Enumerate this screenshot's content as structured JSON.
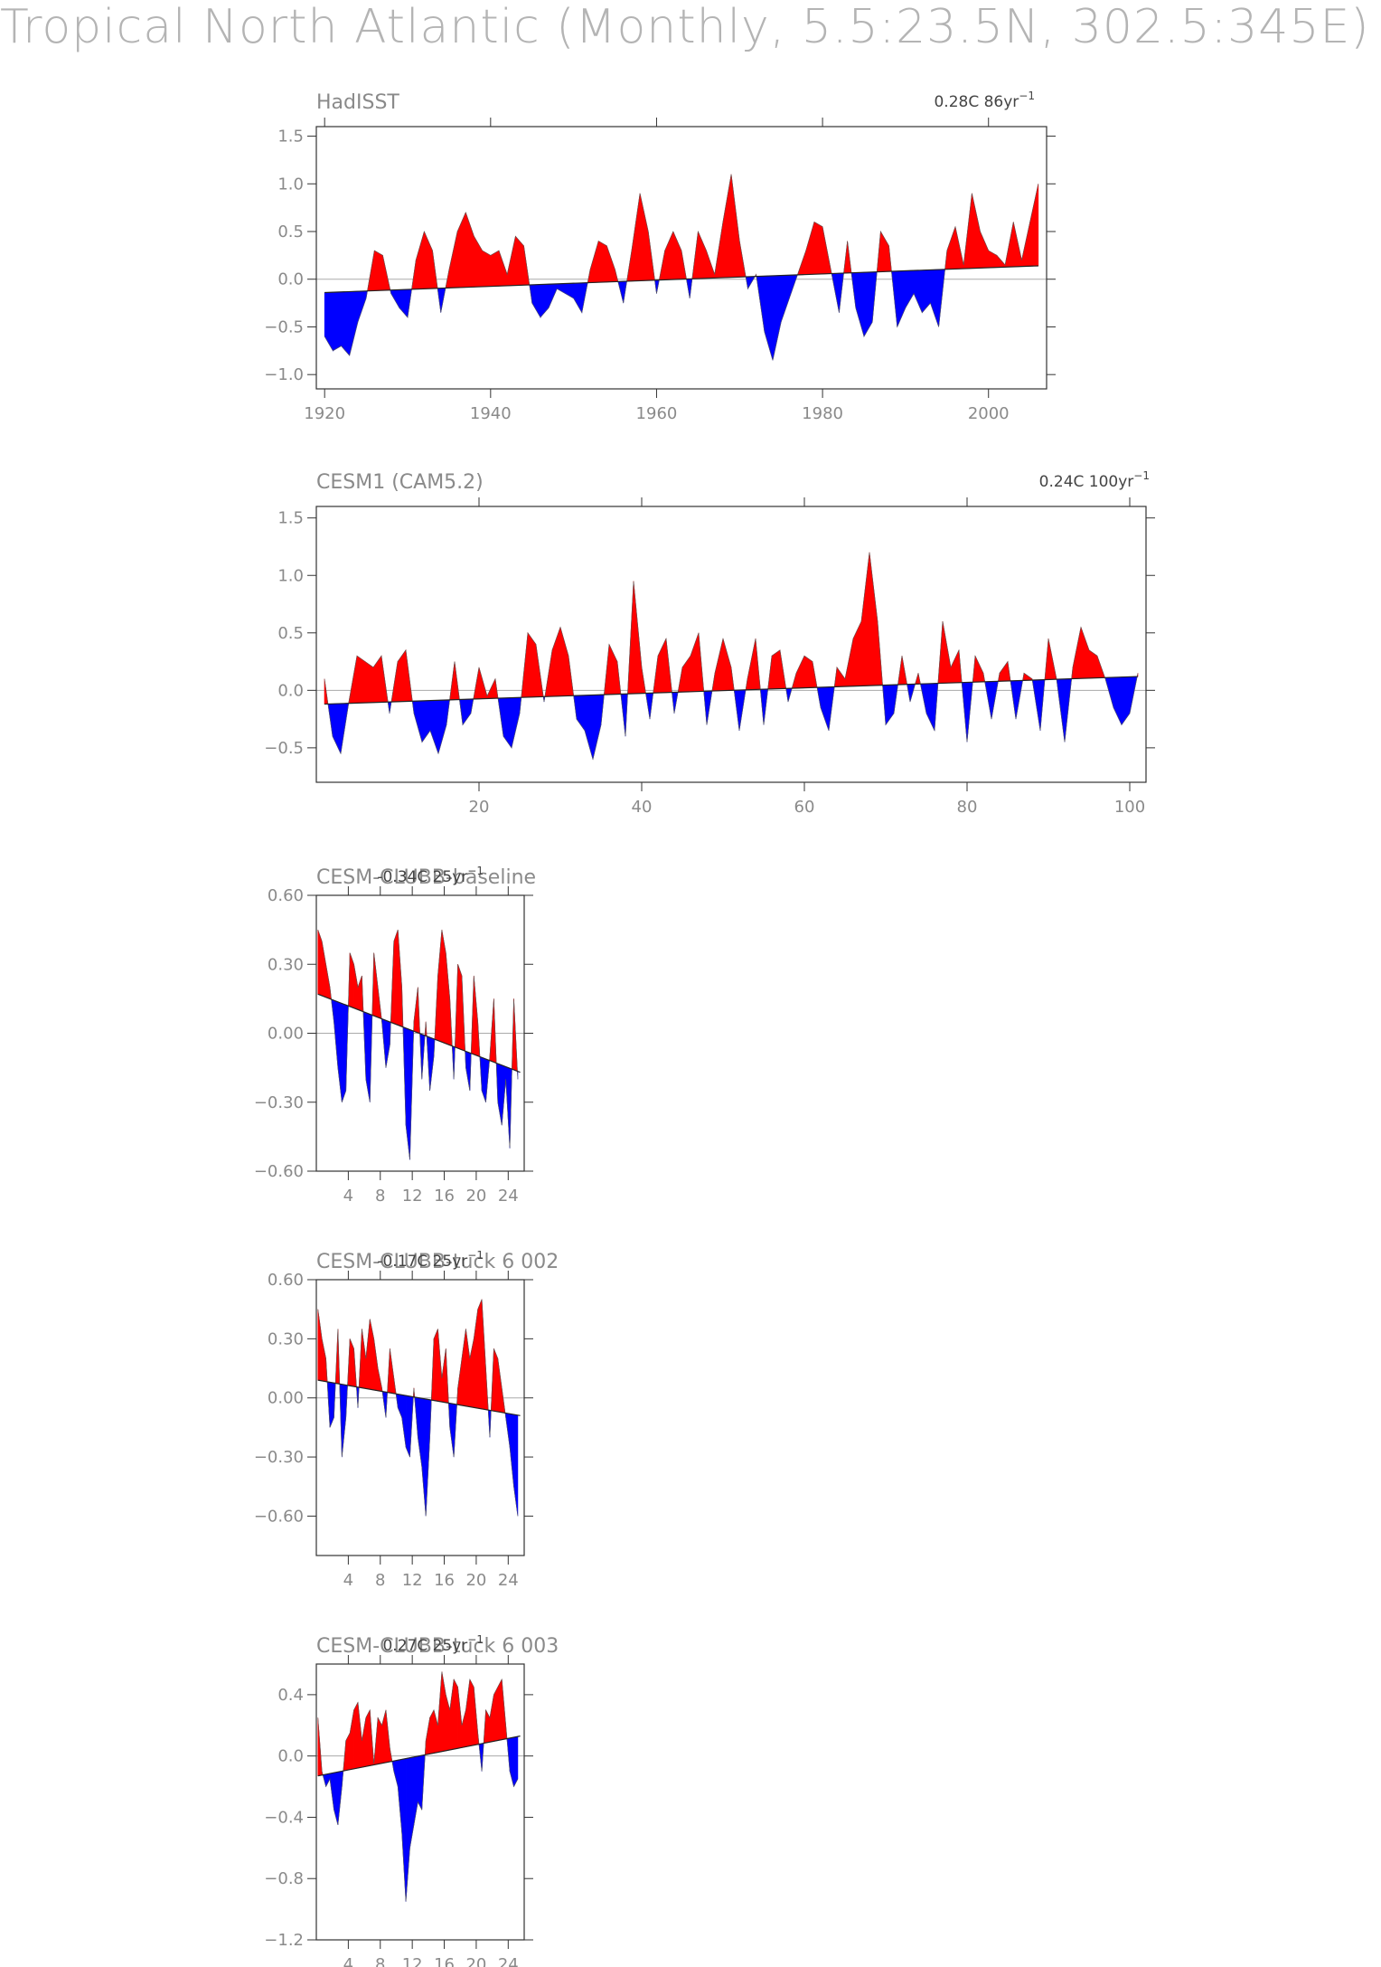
{
  "title": "Tropical North Atlantic (Monthly, 5.5:23.5N, 302.5:345E)",
  "colors": {
    "positive": "#ff0000",
    "negative": "#0000ff",
    "axis": "#333333",
    "text": "#8a8a8a",
    "zero_line": "#aaaaaa"
  },
  "chart_data": [
    {
      "type": "area",
      "title": "HadISST",
      "trend_value": "0.28C 86yr",
      "trend_exp": "−1",
      "xlim": [
        1919,
        2007
      ],
      "ylim": [
        -1.15,
        1.6
      ],
      "x_ticks": [
        1920,
        1940,
        1960,
        1980,
        2000
      ],
      "x_tick_labels": [
        "1920",
        "1940",
        "1960",
        "1980",
        "2000"
      ],
      "y_ticks": [
        -1.0,
        -0.5,
        0.0,
        0.5,
        1.0,
        1.5
      ],
      "y_tick_labels": [
        "−1.0",
        "−0.5",
        "0.0",
        "0.5",
        "1.0",
        "1.5"
      ],
      "trend": {
        "x": [
          1920,
          2006
        ],
        "y": [
          -0.14,
          0.14
        ]
      },
      "series": [
        {
          "x": [
            1920,
            1921,
            1922,
            1923,
            1924,
            1925,
            1926,
            1927,
            1928,
            1929,
            1930,
            1931,
            1932,
            1933,
            1934,
            1935,
            1936,
            1937,
            1938,
            1939,
            1940,
            1941,
            1942,
            1943,
            1944,
            1945,
            1946,
            1947,
            1948,
            1949,
            1950,
            1951,
            1952,
            1953,
            1954,
            1955,
            1956,
            1957,
            1958,
            1959,
            1960,
            1961,
            1962,
            1963,
            1964,
            1965,
            1966,
            1967,
            1968,
            1969,
            1970,
            1971,
            1972,
            1973,
            1974,
            1975,
            1976,
            1977,
            1978,
            1979,
            1980,
            1981,
            1982,
            1983,
            1984,
            1985,
            1986,
            1987,
            1988,
            1989,
            1990,
            1991,
            1992,
            1993,
            1994,
            1995,
            1996,
            1997,
            1998,
            1999,
            2000,
            2001,
            2002,
            2003,
            2004,
            2005,
            2006
          ],
          "y": [
            -0.6,
            -0.75,
            -0.7,
            -0.8,
            -0.45,
            -0.2,
            0.3,
            0.25,
            -0.15,
            -0.3,
            -0.4,
            0.2,
            0.5,
            0.3,
            -0.35,
            0.1,
            0.5,
            0.7,
            0.45,
            0.3,
            0.25,
            0.3,
            0.05,
            0.45,
            0.35,
            -0.25,
            -0.4,
            -0.3,
            -0.1,
            -0.15,
            -0.2,
            -0.35,
            0.1,
            0.4,
            0.35,
            0.1,
            -0.25,
            0.3,
            0.9,
            0.5,
            -0.15,
            0.3,
            0.5,
            0.3,
            -0.2,
            0.5,
            0.3,
            0.05,
            0.6,
            1.1,
            0.4,
            -0.1,
            0.05,
            -0.55,
            -0.85,
            -0.45,
            -0.2,
            0.05,
            0.3,
            0.6,
            0.55,
            0.1,
            -0.35,
            0.4,
            -0.3,
            -0.6,
            -0.45,
            0.5,
            0.35,
            -0.5,
            -0.3,
            -0.15,
            -0.35,
            -0.25,
            -0.5,
            0.3,
            0.55,
            0.15,
            0.9,
            0.5,
            0.3,
            0.25,
            0.15,
            0.6,
            0.2,
            0.6,
            1.0
          ]
        }
      ]
    },
    {
      "type": "area",
      "title": "CESM1 (CAM5.2)",
      "trend_value": "0.24C 100yr",
      "trend_exp": "−1",
      "xlim": [
        0,
        102
      ],
      "ylim": [
        -0.8,
        1.6
      ],
      "x_ticks": [
        20,
        40,
        60,
        80,
        100
      ],
      "x_tick_labels": [
        "20",
        "40",
        "60",
        "80",
        "100"
      ],
      "y_ticks": [
        -0.5,
        0.0,
        0.5,
        1.0,
        1.5
      ],
      "y_tick_labels": [
        "−0.5",
        "0.0",
        "0.5",
        "1.0",
        "1.5"
      ],
      "trend": {
        "x": [
          1,
          101
        ],
        "y": [
          -0.12,
          0.12
        ]
      },
      "series": [
        {
          "x": [
            1,
            2,
            3,
            4,
            5,
            6,
            7,
            8,
            9,
            10,
            11,
            12,
            13,
            14,
            15,
            16,
            17,
            18,
            19,
            20,
            21,
            22,
            23,
            24,
            25,
            26,
            27,
            28,
            29,
            30,
            31,
            32,
            33,
            34,
            35,
            36,
            37,
            38,
            39,
            40,
            41,
            42,
            43,
            44,
            45,
            46,
            47,
            48,
            49,
            50,
            51,
            52,
            53,
            54,
            55,
            56,
            57,
            58,
            59,
            60,
            61,
            62,
            63,
            64,
            65,
            66,
            67,
            68,
            69,
            70,
            71,
            72,
            73,
            74,
            75,
            76,
            77,
            78,
            79,
            80,
            81,
            82,
            83,
            84,
            85,
            86,
            87,
            88,
            89,
            90,
            91,
            92,
            93,
            94,
            95,
            96,
            97,
            98,
            99,
            100,
            101
          ],
          "y": [
            0.1,
            -0.4,
            -0.55,
            -0.1,
            0.3,
            0.25,
            0.2,
            0.3,
            -0.2,
            0.25,
            0.35,
            -0.2,
            -0.45,
            -0.35,
            -0.55,
            -0.3,
            0.25,
            -0.3,
            -0.2,
            0.2,
            -0.05,
            0.1,
            -0.4,
            -0.5,
            -0.2,
            0.5,
            0.4,
            -0.1,
            0.35,
            0.55,
            0.3,
            -0.25,
            -0.35,
            -0.6,
            -0.3,
            0.4,
            0.25,
            -0.4,
            0.95,
            0.2,
            -0.25,
            0.3,
            0.45,
            -0.2,
            0.2,
            0.3,
            0.5,
            -0.3,
            0.15,
            0.45,
            0.2,
            -0.35,
            0.1,
            0.45,
            -0.3,
            0.3,
            0.35,
            -0.1,
            0.15,
            0.3,
            0.25,
            -0.15,
            -0.35,
            0.2,
            0.1,
            0.45,
            0.6,
            1.2,
            0.6,
            -0.3,
            -0.2,
            0.3,
            -0.1,
            0.15,
            -0.2,
            -0.35,
            0.6,
            0.2,
            0.35,
            -0.45,
            0.3,
            0.15,
            -0.25,
            0.15,
            0.25,
            -0.25,
            0.15,
            0.1,
            -0.35,
            0.45,
            0.1,
            -0.45,
            0.2,
            0.55,
            0.35,
            0.3,
            0.1,
            -0.15,
            -0.3,
            -0.2,
            0.15
          ]
        }
      ]
    },
    {
      "type": "area",
      "title": "CESM-CLUBB-baseline",
      "trend_value": "-0.34C 25yr",
      "trend_exp": "−1",
      "xlim": [
        0,
        26
      ],
      "ylim": [
        -0.6,
        0.6
      ],
      "x_ticks": [
        4,
        8,
        12,
        16,
        20,
        24
      ],
      "x_tick_labels": [
        "4",
        "8",
        "12",
        "16",
        "20",
        "24"
      ],
      "y_ticks": [
        -0.6,
        -0.3,
        0.0,
        0.3,
        0.6
      ],
      "y_tick_labels": [
        "−0.60",
        "−0.30",
        "0.00",
        "0.30",
        "0.60"
      ],
      "trend": {
        "x": [
          0.2,
          25.5
        ],
        "y": [
          0.17,
          -0.17
        ]
      },
      "series": [
        {
          "x": [
            0.2,
            0.7,
            1.2,
            1.7,
            2.2,
            2.7,
            3.2,
            3.7,
            4.2,
            4.7,
            5.2,
            5.7,
            6.2,
            6.7,
            7.2,
            7.7,
            8.2,
            8.7,
            9.2,
            9.7,
            10.2,
            10.7,
            11.2,
            11.7,
            12.2,
            12.7,
            13.2,
            13.7,
            14.2,
            14.7,
            15.2,
            15.7,
            16.2,
            16.7,
            17.2,
            17.7,
            18.2,
            18.7,
            19.2,
            19.7,
            20.2,
            20.7,
            21.2,
            21.7,
            22.2,
            22.7,
            23.2,
            23.7,
            24.2,
            24.7,
            25.2
          ],
          "y": [
            0.45,
            0.4,
            0.3,
            0.2,
            0.05,
            -0.15,
            -0.3,
            -0.25,
            0.35,
            0.3,
            0.2,
            0.25,
            -0.2,
            -0.3,
            0.35,
            0.2,
            0.05,
            -0.15,
            -0.05,
            0.4,
            0.45,
            0.2,
            -0.4,
            -0.55,
            0.05,
            0.2,
            -0.2,
            0.05,
            -0.25,
            -0.1,
            0.25,
            0.45,
            0.35,
            0.15,
            -0.2,
            0.3,
            0.25,
            -0.15,
            -0.25,
            0.25,
            0.05,
            -0.25,
            -0.3,
            -0.1,
            0.15,
            -0.3,
            -0.4,
            -0.2,
            -0.5,
            0.15,
            -0.2
          ]
        }
      ]
    },
    {
      "type": "area",
      "title": "CESM-CLUBB-tuck 6 002",
      "trend_value": "-0.17C 25yr",
      "trend_exp": "−1",
      "xlim": [
        0,
        26
      ],
      "ylim": [
        -0.8,
        0.6
      ],
      "x_ticks": [
        4,
        8,
        12,
        16,
        20,
        24
      ],
      "x_tick_labels": [
        "4",
        "8",
        "12",
        "16",
        "20",
        "24"
      ],
      "y_ticks": [
        -0.6,
        -0.3,
        0.0,
        0.3,
        0.6
      ],
      "y_tick_labels": [
        "−0.60",
        "−0.30",
        "0.00",
        "0.30",
        "0.60"
      ],
      "trend": {
        "x": [
          0.2,
          25.5
        ],
        "y": [
          0.09,
          -0.09
        ]
      },
      "series": [
        {
          "x": [
            0.2,
            0.7,
            1.2,
            1.7,
            2.2,
            2.7,
            3.2,
            3.7,
            4.2,
            4.7,
            5.2,
            5.7,
            6.2,
            6.7,
            7.2,
            7.7,
            8.2,
            8.7,
            9.2,
            9.7,
            10.2,
            10.7,
            11.2,
            11.7,
            12.2,
            12.7,
            13.2,
            13.7,
            14.2,
            14.7,
            15.2,
            15.7,
            16.2,
            16.7,
            17.2,
            17.7,
            18.2,
            18.7,
            19.2,
            19.7,
            20.2,
            20.7,
            21.2,
            21.7,
            22.2,
            22.7,
            23.2,
            23.7,
            24.2,
            24.7,
            25.2
          ],
          "y": [
            0.45,
            0.3,
            0.2,
            -0.15,
            -0.1,
            0.35,
            -0.3,
            -0.1,
            0.3,
            0.25,
            -0.05,
            0.35,
            0.2,
            0.4,
            0.3,
            0.15,
            0.05,
            -0.1,
            0.25,
            0.1,
            -0.05,
            -0.1,
            -0.25,
            -0.3,
            0.05,
            -0.2,
            -0.35,
            -0.6,
            -0.2,
            0.3,
            0.35,
            0.1,
            0.25,
            -0.15,
            -0.3,
            0.05,
            0.2,
            0.35,
            0.2,
            0.3,
            0.45,
            0.5,
            0.15,
            -0.2,
            0.25,
            0.2,
            0.05,
            -0.1,
            -0.25,
            -0.45,
            -0.6
          ]
        }
      ]
    },
    {
      "type": "area",
      "title": "CESM-CLUBB-tuck 6 003",
      "trend_value": "0.27C 25yr",
      "trend_exp": "−1",
      "xlim": [
        0,
        26
      ],
      "ylim": [
        -1.2,
        0.6
      ],
      "x_ticks": [
        4,
        8,
        12,
        16,
        20,
        24
      ],
      "x_tick_labels": [
        "4",
        "8",
        "12",
        "16",
        "20",
        "24"
      ],
      "y_ticks": [
        -1.2,
        -0.8,
        -0.4,
        0.0,
        0.4
      ],
      "y_tick_labels": [
        "−1.2",
        "−0.8",
        "−0.4",
        "0.0",
        "0.4"
      ],
      "trend": {
        "x": [
          0.2,
          25.5
        ],
        "y": [
          -0.13,
          0.13
        ]
      },
      "series": [
        {
          "x": [
            0.2,
            0.7,
            1.2,
            1.7,
            2.2,
            2.7,
            3.2,
            3.7,
            4.2,
            4.7,
            5.2,
            5.7,
            6.2,
            6.7,
            7.2,
            7.7,
            8.2,
            8.7,
            9.2,
            9.7,
            10.2,
            10.7,
            11.2,
            11.7,
            12.2,
            12.7,
            13.2,
            13.7,
            14.2,
            14.7,
            15.2,
            15.7,
            16.2,
            16.7,
            17.2,
            17.7,
            18.2,
            18.7,
            19.2,
            19.7,
            20.2,
            20.7,
            21.2,
            21.7,
            22.2,
            22.7,
            23.2,
            23.7,
            24.2,
            24.7,
            25.2
          ],
          "y": [
            0.25,
            -0.1,
            -0.2,
            -0.15,
            -0.35,
            -0.45,
            -0.2,
            0.1,
            0.15,
            0.3,
            0.35,
            0.1,
            0.25,
            0.3,
            -0.05,
            0.25,
            0.2,
            0.3,
            0.05,
            -0.1,
            -0.2,
            -0.5,
            -0.95,
            -0.6,
            -0.45,
            -0.3,
            -0.35,
            0.1,
            0.25,
            0.3,
            0.2,
            0.55,
            0.4,
            0.3,
            0.5,
            0.45,
            0.2,
            0.3,
            0.5,
            0.45,
            0.15,
            -0.1,
            0.3,
            0.25,
            0.4,
            0.45,
            0.5,
            0.2,
            -0.1,
            -0.2,
            -0.15
          ]
        }
      ]
    }
  ]
}
